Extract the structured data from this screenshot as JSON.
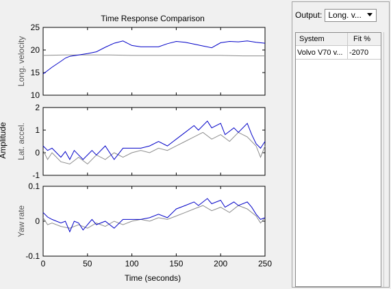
{
  "plot": {
    "title": "Time Response Comparison",
    "xlabel": "Time (seconds)",
    "shared_ylabel": "Amplitude",
    "xticks": [
      "0",
      "50",
      "100",
      "150",
      "200",
      "250"
    ],
    "subplots": [
      {
        "ylabel": "Long. velocity",
        "yticks": [
          "25",
          "20",
          "15",
          "10"
        ]
      },
      {
        "ylabel": "Lat. accel.",
        "yticks": [
          "2",
          "1",
          "0",
          "-1"
        ]
      },
      {
        "ylabel": "Yaw rate",
        "yticks": [
          "0.1",
          "0",
          "-0.1"
        ]
      }
    ],
    "colors": {
      "model": "#0000c8",
      "measured": "#8c8c8c"
    }
  },
  "chart_data": {
    "type": "line",
    "title": "Time Response Comparison",
    "xlabel": "Time (seconds)",
    "xlim": [
      0,
      250
    ],
    "subplots": [
      {
        "ylabel": "Long. velocity",
        "ylim": [
          10,
          25
        ],
        "series": [
          {
            "color": "#0000c8",
            "x": [
              0,
              10,
              20,
              25,
              30,
              40,
              50,
              60,
              70,
              80,
              90,
              100,
              110,
              120,
              130,
              140,
              150,
              160,
              170,
              180,
              190,
              200,
              210,
              220,
              230,
              240,
              250
            ],
            "y": [
              14.7,
              16.2,
              17.5,
              18.2,
              18.6,
              18.9,
              19.2,
              19.6,
              20.6,
              21.5,
              22.0,
              21.0,
              20.7,
              20.7,
              20.7,
              21.4,
              21.9,
              21.7,
              21.3,
              20.9,
              20.5,
              21.6,
              21.9,
              21.8,
              22.0,
              21.7,
              21.5
            ]
          },
          {
            "color": "#8c8c8c",
            "x": [
              0,
              25,
              50,
              75,
              100,
              125,
              150,
              175,
              200,
              225,
              250
            ],
            "y": [
              18.8,
              18.9,
              18.9,
              18.9,
              18.8,
              18.8,
              18.8,
              18.8,
              18.8,
              18.7,
              18.7
            ]
          }
        ]
      },
      {
        "ylabel": "Lat. accel.",
        "ylim": [
          -1,
          2
        ],
        "series": [
          {
            "color": "#0000c8",
            "x": [
              0,
              5,
              10,
              20,
              25,
              30,
              35,
              40,
              45,
              55,
              60,
              70,
              80,
              90,
              100,
              110,
              120,
              130,
              140,
              150,
              160,
              170,
              175,
              185,
              190,
              200,
              205,
              215,
              220,
              230,
              235,
              240,
              245,
              250
            ],
            "y": [
              0.3,
              0.1,
              0.2,
              -0.2,
              0.05,
              -0.3,
              0.1,
              -0.1,
              -0.3,
              0.1,
              -0.1,
              0.3,
              -0.3,
              0.2,
              0.2,
              0.2,
              0.3,
              0.5,
              0.3,
              0.6,
              0.9,
              1.2,
              1.0,
              1.4,
              1.1,
              1.3,
              0.8,
              1.1,
              0.9,
              1.3,
              0.8,
              0.4,
              0.2,
              0.5
            ]
          },
          {
            "color": "#8c8c8c",
            "x": [
              0,
              5,
              10,
              20,
              30,
              40,
              50,
              60,
              70,
              80,
              90,
              100,
              110,
              120,
              130,
              140,
              150,
              160,
              170,
              180,
              190,
              200,
              210,
              220,
              230,
              240,
              245,
              250
            ],
            "y": [
              0.1,
              -0.3,
              0.0,
              -0.4,
              -0.5,
              -0.2,
              -0.5,
              -0.1,
              -0.3,
              0.0,
              -0.2,
              0.0,
              0.1,
              0.0,
              0.2,
              0.1,
              0.3,
              0.5,
              0.7,
              0.9,
              0.6,
              0.8,
              0.5,
              0.9,
              0.7,
              0.3,
              -0.2,
              0.3
            ]
          }
        ]
      },
      {
        "ylabel": "Yaw rate",
        "ylim": [
          -0.1,
          0.1
        ],
        "series": [
          {
            "color": "#0000c8",
            "x": [
              0,
              5,
              10,
              20,
              25,
              30,
              35,
              40,
              45,
              55,
              60,
              70,
              80,
              90,
              100,
              110,
              120,
              130,
              140,
              150,
              160,
              170,
              175,
              185,
              190,
              200,
              205,
              215,
              220,
              230,
              235,
              240,
              245,
              250
            ],
            "y": [
              0.025,
              0.012,
              0.005,
              -0.005,
              0.0,
              -0.03,
              0.0,
              -0.005,
              -0.025,
              0.005,
              -0.01,
              0.0,
              -0.02,
              0.005,
              0.005,
              0.005,
              0.01,
              0.02,
              0.01,
              0.035,
              0.045,
              0.055,
              0.045,
              0.065,
              0.05,
              0.06,
              0.04,
              0.055,
              0.045,
              0.055,
              0.04,
              0.02,
              0.005,
              0.01
            ]
          },
          {
            "color": "#8c8c8c",
            "x": [
              0,
              5,
              10,
              20,
              30,
              40,
              50,
              60,
              70,
              80,
              90,
              100,
              110,
              120,
              130,
              140,
              150,
              160,
              170,
              180,
              190,
              200,
              210,
              220,
              230,
              240,
              245,
              250
            ],
            "y": [
              0.01,
              -0.01,
              -0.005,
              -0.015,
              -0.02,
              -0.01,
              -0.02,
              -0.005,
              -0.015,
              0.0,
              -0.01,
              0.0,
              0.005,
              0.0,
              0.01,
              0.005,
              0.015,
              0.025,
              0.035,
              0.045,
              0.03,
              0.04,
              0.025,
              0.045,
              0.035,
              0.015,
              -0.005,
              0.01
            ]
          }
        ]
      }
    ]
  },
  "panel": {
    "output_label": "Output:",
    "output_value": "Long. v...",
    "columns": [
      "System",
      "Fit %"
    ],
    "rows": [
      {
        "system": "Volvo V70 v...",
        "fit": "-2070"
      }
    ]
  }
}
